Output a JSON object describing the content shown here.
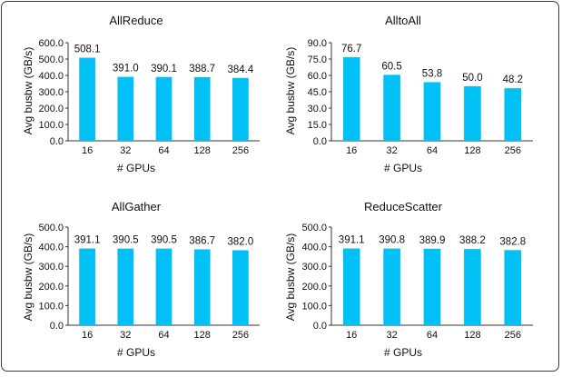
{
  "colors": {
    "bar": "#00C0F5",
    "axis": "#333333",
    "text": "#111111"
  },
  "chart_data": [
    {
      "type": "bar",
      "title": "AllReduce",
      "xlabel": "# GPUs",
      "ylabel": "Avg busbw (GB/s)",
      "categories": [
        "16",
        "32",
        "64",
        "128",
        "256"
      ],
      "values": [
        508.1,
        391.0,
        390.1,
        388.7,
        384.4
      ],
      "value_labels": [
        "508.1",
        "391.0",
        "390.1",
        "388.7",
        "384.4"
      ],
      "ylim": [
        0,
        600
      ],
      "yticks": [
        0,
        100,
        200,
        300,
        400,
        500,
        600
      ],
      "ytick_labels": [
        "0.0",
        "100.0",
        "200.0",
        "300.0",
        "400.0",
        "500.0",
        "600.0"
      ],
      "grid": false
    },
    {
      "type": "bar",
      "title": "AlltoAll",
      "xlabel": "# GPUs",
      "ylabel": "Avg busbw (GB/s)",
      "categories": [
        "16",
        "32",
        "64",
        "128",
        "256"
      ],
      "values": [
        76.7,
        60.5,
        53.8,
        50.0,
        48.2
      ],
      "value_labels": [
        "76.7",
        "60.5",
        "53.8",
        "50.0",
        "48.2"
      ],
      "ylim": [
        0,
        90
      ],
      "yticks": [
        0,
        15,
        30,
        45,
        60,
        75,
        90
      ],
      "ytick_labels": [
        "0.0",
        "15.0",
        "30.0",
        "45.0",
        "60.0",
        "75.0",
        "90.0"
      ],
      "grid": false
    },
    {
      "type": "bar",
      "title": "AllGather",
      "xlabel": "# GPUs",
      "ylabel": "Avg busbw (GB/s)",
      "categories": [
        "16",
        "32",
        "64",
        "128",
        "256"
      ],
      "values": [
        391.1,
        390.5,
        390.5,
        386.7,
        382.0
      ],
      "value_labels": [
        "391.1",
        "390.5",
        "390.5",
        "386.7",
        "382.0"
      ],
      "ylim": [
        0,
        500
      ],
      "yticks": [
        0,
        100,
        200,
        300,
        400,
        500
      ],
      "ytick_labels": [
        "0.0",
        "100.0",
        "200.0",
        "300.0",
        "400.0",
        "500.0"
      ],
      "grid": false
    },
    {
      "type": "bar",
      "title": "ReduceScatter",
      "xlabel": "# GPUs",
      "ylabel": "Avg busbw (GB/s)",
      "categories": [
        "16",
        "32",
        "64",
        "128",
        "256"
      ],
      "values": [
        391.1,
        390.8,
        389.9,
        388.2,
        382.8
      ],
      "value_labels": [
        "391.1",
        "390.8",
        "389.9",
        "388.2",
        "382.8"
      ],
      "ylim": [
        0,
        500
      ],
      "yticks": [
        0,
        100,
        200,
        300,
        400,
        500
      ],
      "ytick_labels": [
        "0.0",
        "100.0",
        "200.0",
        "300.0",
        "400.0",
        "500.0"
      ],
      "grid": false
    }
  ]
}
